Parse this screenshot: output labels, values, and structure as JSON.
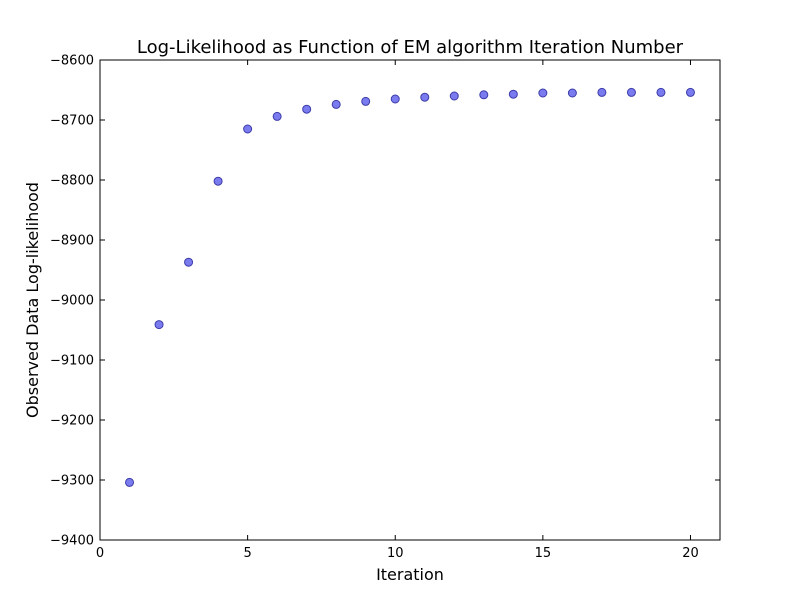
{
  "chart_data": {
    "type": "scatter",
    "title": "Log-Likelihood as Function of EM algorithm Iteration Number",
    "xlabel": "Iteration",
    "ylabel": "Observed Data Log-likelihood",
    "xlim": [
      0,
      21
    ],
    "ylim": [
      -9400,
      -8600
    ],
    "xticks": [
      0,
      5,
      10,
      15,
      20
    ],
    "yticks": [
      -9400,
      -9300,
      -9200,
      -9100,
      -9000,
      -8900,
      -8800,
      -8700,
      -8600
    ],
    "xtick_labels": [
      "0",
      "5",
      "10",
      "15",
      "20"
    ],
    "ytick_labels": [
      "−9400",
      "−9300",
      "−9200",
      "−9100",
      "−9000",
      "−8900",
      "−8800",
      "−8700",
      "−8600"
    ],
    "grid": false,
    "series": [
      {
        "color": "#7b7bf0",
        "edge_color": "#3b3ba8",
        "x": [
          1,
          2,
          3,
          4,
          5,
          6,
          7,
          8,
          9,
          10,
          11,
          12,
          13,
          14,
          15,
          16,
          17,
          18,
          19,
          20
        ],
        "y": [
          -9304,
          -9041,
          -8937,
          -8802,
          -8715,
          -8694,
          -8682,
          -8674,
          -8669,
          -8665,
          -8662,
          -8660,
          -8658,
          -8657,
          -8655,
          -8655,
          -8654,
          -8654,
          -8654,
          -8654
        ]
      }
    ]
  }
}
